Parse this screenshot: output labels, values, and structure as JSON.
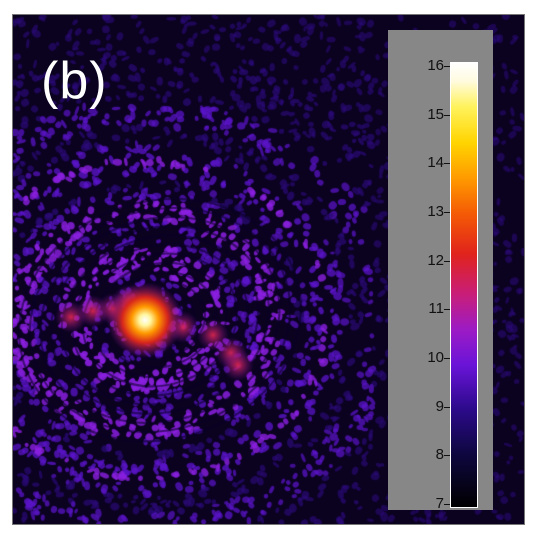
{
  "panel_label": "(b)",
  "colorbar": {
    "ticks": [
      "16",
      "15",
      "14",
      "13",
      "12",
      "11",
      "10",
      "9",
      "8",
      "7"
    ],
    "min": 7,
    "max": 16,
    "colormap": "gnuplot-like black-purple-red-yellow-white"
  },
  "colors": {
    "background": "#0b0220",
    "panel": "#878787",
    "hotspot": "#ffffff",
    "glow": "#ff9a00"
  }
}
